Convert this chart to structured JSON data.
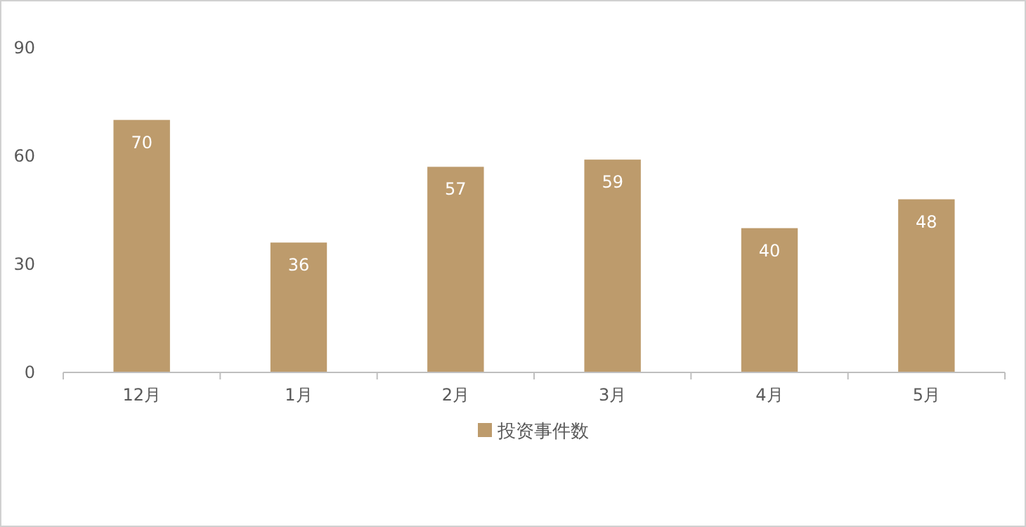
{
  "chart_data": {
    "type": "bar",
    "categories": [
      "12月",
      "1月",
      "2月",
      "3月",
      "4月",
      "5月"
    ],
    "series": [
      {
        "name": "投资事件数",
        "color": "#bd9b6c",
        "values": [
          70,
          36,
          57,
          59,
          40,
          48
        ]
      }
    ],
    "ylim": [
      0,
      90
    ],
    "yticks": [
      0,
      30,
      60,
      90
    ],
    "grid": false,
    "legend": "bottom",
    "data_labels": true
  }
}
